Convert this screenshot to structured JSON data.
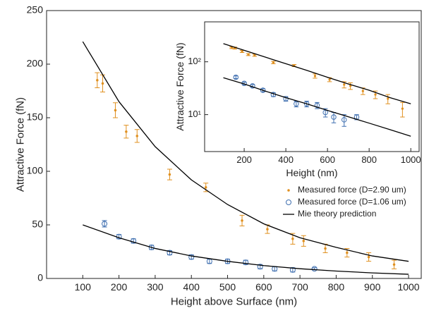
{
  "chart_data": [
    {
      "type": "errorbar",
      "x_label": "Height above Surface (nm)",
      "y_label": "Attractive Force (fN)",
      "xlim": [
        0,
        1035
      ],
      "ylim": [
        0,
        250
      ],
      "xticks": [
        100,
        200,
        300,
        400,
        500,
        600,
        700,
        800,
        900,
        1000
      ],
      "yticks": [
        0,
        50,
        100,
        150,
        200,
        250
      ],
      "yscale": "linear",
      "legend": "right",
      "series": [
        {
          "name": "Measured force (D=2.90 um)",
          "color": "#e0901f",
          "marker": "dot",
          "x": [
            140,
            155,
            190,
            220,
            250,
            340,
            440,
            540,
            610,
            680,
            710,
            770,
            830,
            890,
            960
          ],
          "values": [
            185,
            182,
            157,
            137,
            133,
            97,
            85,
            54,
            46,
            37,
            35,
            28,
            24,
            20,
            13
          ],
          "errors": [
            7,
            8,
            7,
            6,
            6,
            5,
            4,
            5,
            4,
            5,
            5,
            4,
            4,
            4,
            4
          ]
        },
        {
          "name": "Measured force (D=1.06 um)",
          "color": "#3f6fb0",
          "marker": "circle",
          "x": [
            160,
            200,
            240,
            290,
            340,
            400,
            450,
            500,
            550,
            590,
            630,
            680,
            740
          ],
          "values": [
            51,
            39,
            35,
            29,
            24,
            20,
            16,
            16,
            15,
            11,
            9,
            8,
            9
          ],
          "errors": [
            3,
            2,
            2,
            2,
            2,
            2,
            2,
            2,
            2,
            2,
            2,
            2,
            1
          ]
        },
        {
          "name": "Mie theory prediction",
          "color": "#000000",
          "marker": "line",
          "x": [
            100,
            200,
            300,
            400,
            500,
            600,
            700,
            800,
            900,
            1000
          ],
          "values": [
            221,
            165,
            123,
            92,
            69,
            51,
            38,
            29,
            21,
            16
          ]
        },
        {
          "color": "#000000",
          "marker": "line",
          "x": [
            100,
            200,
            300,
            400,
            500,
            600,
            700,
            800,
            900,
            1000
          ],
          "values": [
            50,
            38,
            28,
            21,
            16,
            12,
            9.1,
            6.9,
            5.2,
            3.9
          ]
        }
      ]
    },
    {
      "type": "errorbar",
      "x_label": "Height (nm)",
      "y_label": "Attractive Force (fN)",
      "xlim": [
        10,
        1040
      ],
      "ylim": [
        2,
        570
      ],
      "xticks": [
        200,
        400,
        600,
        800,
        1000
      ],
      "yticks": [
        {
          "value": 10,
          "label": "10¹"
        },
        {
          "value": 100,
          "label": "10²"
        }
      ],
      "yscale": "log",
      "series": [
        {
          "color": "#e0901f",
          "marker": "dot",
          "x": [
            140,
            155,
            190,
            220,
            250,
            340,
            440,
            540,
            610,
            680,
            710,
            770,
            830,
            890,
            960
          ],
          "values": [
            185,
            182,
            157,
            137,
            133,
            97,
            85,
            54,
            46,
            37,
            35,
            28,
            24,
            20,
            13
          ],
          "errors": [
            7,
            8,
            7,
            6,
            6,
            5,
            4,
            5,
            4,
            5,
            5,
            4,
            4,
            4,
            4
          ]
        },
        {
          "color": "#3f6fb0",
          "marker": "circle",
          "x": [
            160,
            200,
            240,
            290,
            340,
            400,
            450,
            500,
            550,
            590,
            630,
            680,
            740
          ],
          "values": [
            51,
            39,
            35,
            29,
            24,
            20,
            16,
            16,
            15,
            11,
            9,
            8,
            9
          ],
          "errors": [
            3,
            2,
            2,
            2,
            2,
            2,
            2,
            2,
            2,
            2,
            2,
            2,
            1
          ]
        },
        {
          "color": "#000000",
          "marker": "line",
          "x": [
            100,
            200,
            300,
            400,
            500,
            600,
            700,
            800,
            900,
            1000
          ],
          "values": [
            221,
            165,
            123,
            92,
            69,
            51,
            38,
            29,
            21,
            16
          ]
        },
        {
          "color": "#000000",
          "marker": "line",
          "x": [
            100,
            200,
            300,
            400,
            500,
            600,
            700,
            800,
            900,
            1000
          ],
          "values": [
            50,
            38,
            28,
            21,
            16,
            12,
            9.1,
            6.9,
            5.2,
            3.9
          ]
        }
      ]
    }
  ]
}
